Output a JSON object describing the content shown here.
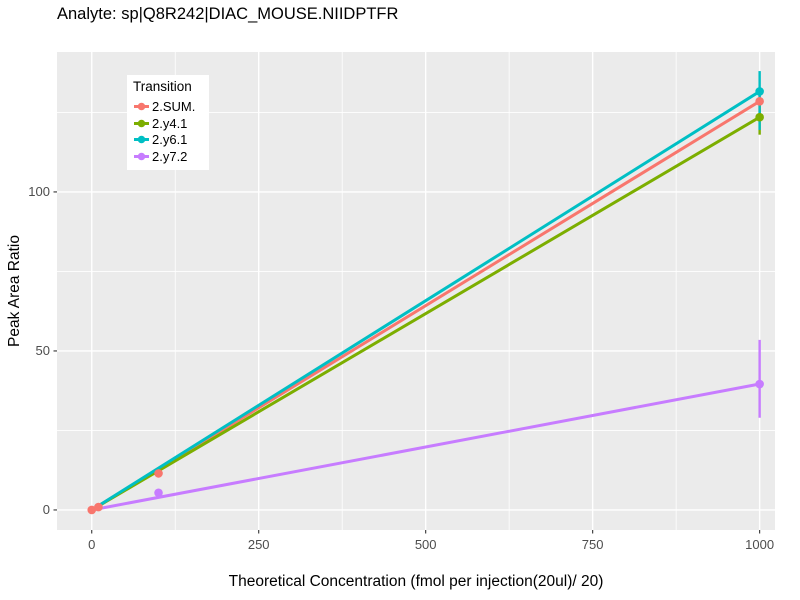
{
  "theme": {
    "figure_bg": "#FFFFFF",
    "panel_bg": "#EBEBEB",
    "grid_color": "#FFFFFF",
    "tick_label_color": "#4D4D4D",
    "tick_mark_color": "#333333",
    "text_color": "#000000"
  },
  "chart_data": {
    "type": "line",
    "title": "Analyte: sp|Q8R242|DIAC_MOUSE.NIIDPTFR",
    "xlabel": "Theoretical Concentration (fmol per injection(20ul)/ 20)",
    "ylabel": "Peak Area Ratio",
    "xlim": [
      -52,
      1023
    ],
    "ylim": [
      -6.3,
      144
    ],
    "x_ticks": [
      0,
      250,
      500,
      750,
      1000
    ],
    "x_minor_ticks": [
      125,
      375,
      625,
      875
    ],
    "y_ticks": [
      0,
      50,
      100
    ],
    "y_minor_ticks": [
      25,
      75,
      125
    ],
    "grid": "white major and minor gridlines on gray panel",
    "legend": {
      "title": "Transition",
      "position": "inside top-left"
    },
    "series": [
      {
        "name": "2.SUM.",
        "color": "#F8766D",
        "line": [
          [
            0,
            0
          ],
          [
            1000,
            128.5
          ]
        ],
        "points": [
          {
            "x": 0,
            "y": 0
          },
          {
            "x": 10,
            "y": 0.9
          },
          {
            "x": 100,
            "y": 11.5
          },
          {
            "x": 1000,
            "y": 128.5,
            "ymin": 125,
            "ymax": 132
          }
        ]
      },
      {
        "name": "2.y4.1",
        "color": "#7CAE00",
        "line": [
          [
            0,
            0
          ],
          [
            1000,
            123.5
          ]
        ],
        "points": [
          {
            "x": 1000,
            "y": 123.5,
            "ymin": 118,
            "ymax": 128.5
          }
        ]
      },
      {
        "name": "2.y6.1",
        "color": "#00BFC4",
        "line": [
          [
            0,
            0
          ],
          [
            1000,
            131.6
          ]
        ],
        "points": [
          {
            "x": 1000,
            "y": 131.6,
            "ymin": 119.5,
            "ymax": 138
          }
        ]
      },
      {
        "name": "2.y7.2",
        "color": "#C77CFF",
        "line": [
          [
            0,
            0
          ],
          [
            1000,
            39.6
          ]
        ],
        "points": [
          {
            "x": 100,
            "y": 5.4
          },
          {
            "x": 1000,
            "y": 39.6,
            "ymin": 29,
            "ymax": 53.5
          }
        ]
      }
    ]
  }
}
